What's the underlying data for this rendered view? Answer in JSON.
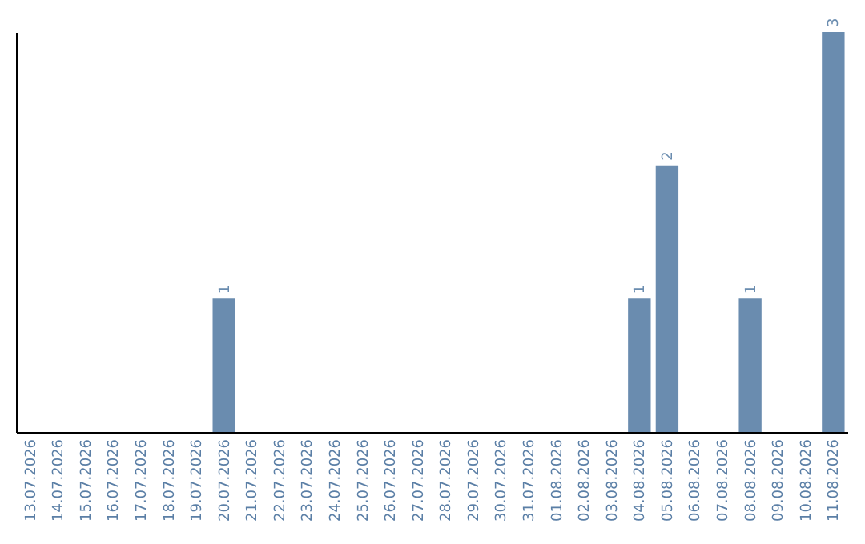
{
  "chart_data": {
    "type": "bar",
    "categories": [
      "13.07.2026",
      "14.07.2026",
      "15.07.2026",
      "16.07.2026",
      "17.07.2026",
      "18.07.2026",
      "19.07.2026",
      "20.07.2026",
      "21.07.2026",
      "22.07.2026",
      "23.07.2026",
      "24.07.2026",
      "25.07.2026",
      "26.07.2026",
      "27.07.2026",
      "28.07.2026",
      "29.07.2026",
      "30.07.2026",
      "31.07.2026",
      "01.08.2026",
      "02.08.2026",
      "03.08.2026",
      "04.08.2026",
      "05.08.2026",
      "06.08.2026",
      "07.08.2026",
      "08.08.2026",
      "09.08.2026",
      "10.08.2026",
      "11.08.2026"
    ],
    "values": [
      0,
      0,
      0,
      0,
      0,
      0,
      0,
      1,
      0,
      0,
      0,
      0,
      0,
      0,
      0,
      0,
      0,
      0,
      0,
      0,
      0,
      0,
      1,
      2,
      0,
      0,
      1,
      0,
      0,
      3
    ],
    "value_labels": [
      null,
      null,
      null,
      null,
      null,
      null,
      null,
      "1",
      null,
      null,
      null,
      null,
      null,
      null,
      null,
      null,
      null,
      null,
      null,
      null,
      null,
      null,
      "1",
      "2",
      null,
      null,
      "1",
      null,
      null,
      "3"
    ],
    "color": "#6a8caf",
    "tick_labels": "x",
    "grid": false
  }
}
